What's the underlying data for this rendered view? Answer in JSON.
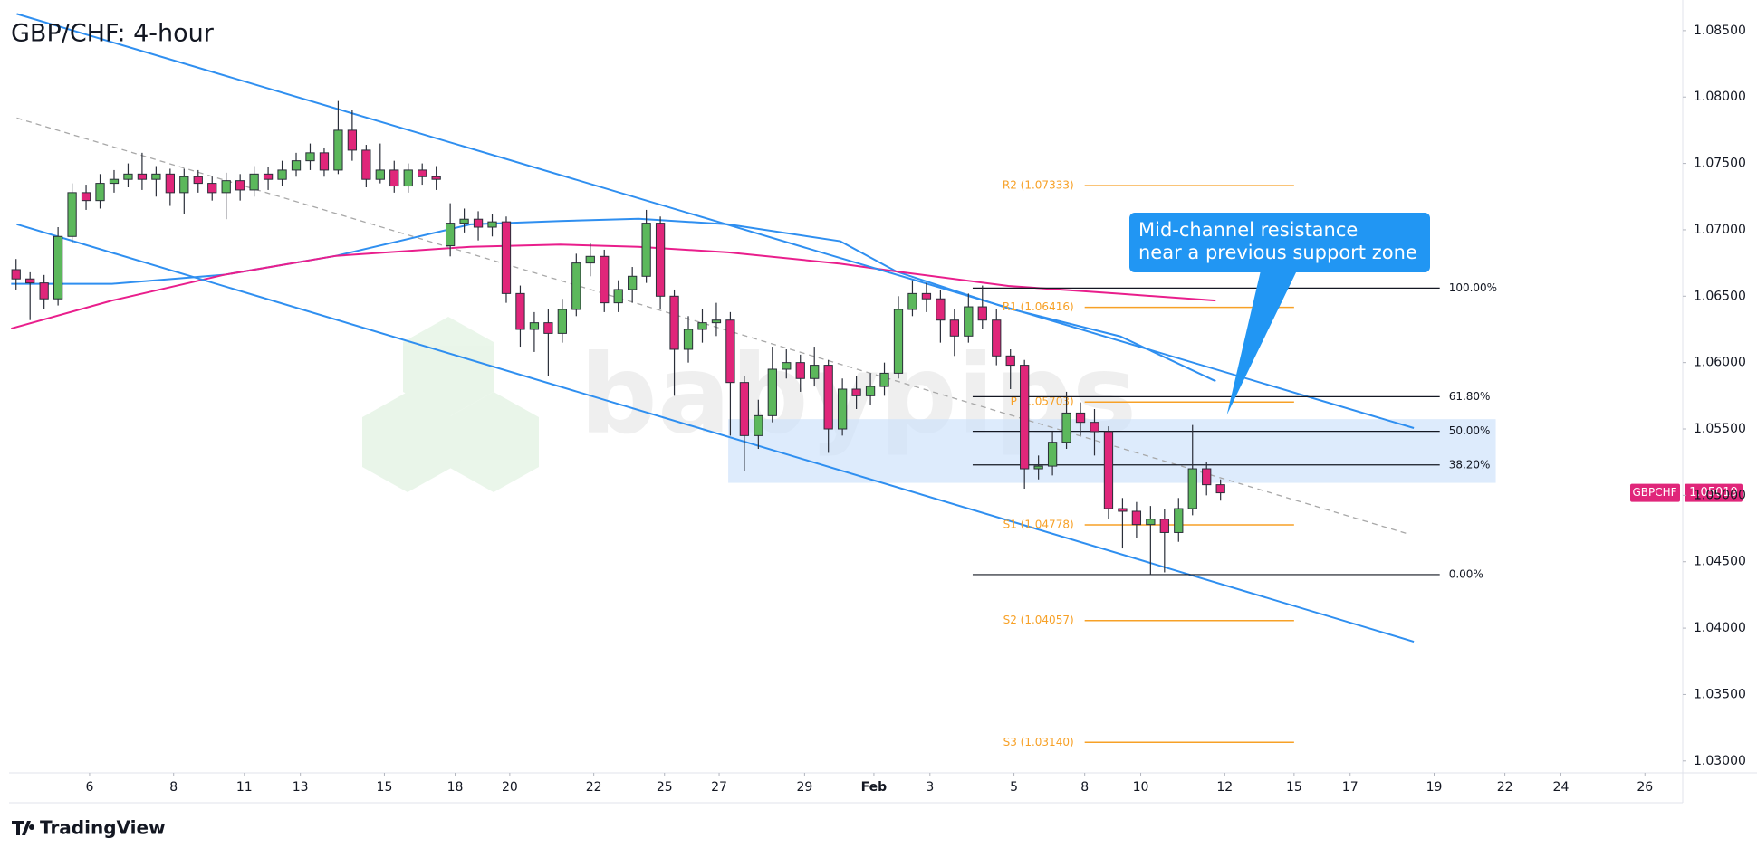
{
  "chart_data": {
    "type": "candlestick",
    "title": "GBP/CHF: 4-hour",
    "symbol": "GBPCHF",
    "last_price": 1.05019,
    "watermark": "babypips",
    "brand": "TradingView",
    "up_color": "#5cb85c",
    "down_color": "#e0267a",
    "xlim": [
      0,
      239
    ],
    "ylim": [
      1.0291,
      1.0869
    ],
    "xticks": [
      {
        "value": 11.5,
        "label": "6"
      },
      {
        "value": 23.5,
        "label": "8"
      },
      {
        "value": 33.6,
        "label": "11"
      },
      {
        "value": 41.6,
        "label": "13"
      },
      {
        "value": 53.6,
        "label": "15"
      },
      {
        "value": 63.7,
        "label": "18"
      },
      {
        "value": 71.5,
        "label": "20"
      },
      {
        "value": 83.5,
        "label": "22"
      },
      {
        "value": 93.6,
        "label": "25"
      },
      {
        "value": 101.4,
        "label": "27"
      },
      {
        "value": 113.6,
        "label": "29"
      },
      {
        "value": 123.5,
        "label": "Feb"
      },
      {
        "value": 131.5,
        "label": "3"
      },
      {
        "value": 143.5,
        "label": "5"
      },
      {
        "value": 153.6,
        "label": "8"
      },
      {
        "value": 161.6,
        "label": "10"
      },
      {
        "value": 173.6,
        "label": "12"
      },
      {
        "value": 183.5,
        "label": "15"
      },
      {
        "value": 191.5,
        "label": "17"
      },
      {
        "value": 203.5,
        "label": "19"
      },
      {
        "value": 213.6,
        "label": "22"
      },
      {
        "value": 221.6,
        "label": "24"
      },
      {
        "value": 233.6,
        "label": "26"
      }
    ],
    "yticks": [
      {
        "value": 1.03,
        "label": "1.03000"
      },
      {
        "value": 1.035,
        "label": "1.03500"
      },
      {
        "value": 1.04,
        "label": "1.04000"
      },
      {
        "value": 1.045,
        "label": "1.04500"
      },
      {
        "value": 1.05,
        "label": "1.05000"
      },
      {
        "value": 1.055,
        "label": "1.05500"
      },
      {
        "value": 1.06,
        "label": "1.06000"
      },
      {
        "value": 1.065,
        "label": "1.06500"
      },
      {
        "value": 1.07,
        "label": "1.07000"
      },
      {
        "value": 1.075,
        "label": "1.07500"
      },
      {
        "value": 1.08,
        "label": "1.08000"
      },
      {
        "value": 1.085,
        "label": "1.08500"
      }
    ],
    "x": [
      1,
      3,
      5,
      7,
      9,
      11,
      13,
      15,
      17,
      19,
      21,
      23,
      25,
      27,
      29,
      31,
      33,
      35,
      37,
      39,
      41,
      43,
      45,
      47,
      49,
      51,
      53,
      55,
      57,
      59,
      61,
      63,
      65,
      67,
      69,
      71,
      73,
      75,
      77,
      79,
      81,
      83,
      85,
      87,
      89,
      91,
      93,
      95,
      97,
      99,
      101,
      103,
      105,
      107,
      109,
      111,
      113,
      115,
      117,
      119,
      121,
      123,
      125,
      127,
      129,
      131,
      133,
      135,
      137,
      139,
      141,
      143,
      145,
      147,
      149,
      151,
      153,
      155,
      157,
      159,
      161,
      163,
      165,
      167,
      169,
      171,
      173
    ],
    "open": [
      1.067,
      1.0663,
      1.066,
      1.0648,
      1.0695,
      1.0728,
      1.0722,
      1.0735,
      1.0738,
      1.0742,
      1.0738,
      1.0742,
      1.0728,
      1.074,
      1.0735,
      1.0728,
      1.0737,
      1.073,
      1.0742,
      1.0738,
      1.0745,
      1.0752,
      1.0758,
      1.0745,
      1.0775,
      1.076,
      1.0738,
      1.0745,
      1.0733,
      1.0745,
      1.074,
      1.0688,
      1.0705,
      1.0708,
      1.0702,
      1.0706,
      1.0652,
      1.0625,
      1.063,
      1.0622,
      1.064,
      1.0675,
      1.068,
      1.0645,
      1.0655,
      1.0665,
      1.0705,
      1.065,
      1.061,
      1.0625,
      1.063,
      1.0632,
      1.0585,
      1.0545,
      1.056,
      1.0595,
      1.06,
      1.0588,
      1.0598,
      1.055,
      1.058,
      1.0575,
      1.0582,
      1.0592,
      1.064,
      1.0652,
      1.0648,
      1.0632,
      1.062,
      1.0642,
      1.0632,
      1.0605,
      1.0598,
      1.052,
      1.0522,
      1.054,
      1.0562,
      1.0555,
      1.0548,
      1.049,
      1.0488,
      1.0478,
      1.0482,
      1.0472,
      1.049,
      1.052,
      1.0508
    ],
    "high": [
      1.0678,
      1.0668,
      1.0666,
      1.0702,
      1.0735,
      1.0734,
      1.0742,
      1.0745,
      1.075,
      1.0758,
      1.0748,
      1.0746,
      1.0746,
      1.0745,
      1.074,
      1.0743,
      1.0742,
      1.0748,
      1.0747,
      1.0752,
      1.0758,
      1.0765,
      1.0762,
      1.0797,
      1.079,
      1.0764,
      1.0765,
      1.0752,
      1.075,
      1.075,
      1.0748,
      1.072,
      1.0716,
      1.0714,
      1.0712,
      1.071,
      1.0658,
      1.0638,
      1.064,
      1.0648,
      1.0682,
      1.069,
      1.0685,
      1.0662,
      1.0672,
      1.0715,
      1.071,
      1.0655,
      1.0635,
      1.064,
      1.0645,
      1.0638,
      1.059,
      1.0572,
      1.0612,
      1.061,
      1.0606,
      1.0612,
      1.0602,
      1.0588,
      1.059,
      1.0592,
      1.06,
      1.065,
      1.0662,
      1.066,
      1.0655,
      1.064,
      1.0652,
      1.0658,
      1.064,
      1.061,
      1.0602,
      1.053,
      1.0548,
      1.0578,
      1.057,
      1.0565,
      1.0552,
      1.0498,
      1.0495,
      1.0492,
      1.049,
      1.0498,
      1.0553,
      1.0525,
      1.0512
    ],
    "low": [
      1.0655,
      1.0632,
      1.064,
      1.0643,
      1.069,
      1.0715,
      1.0716,
      1.0728,
      1.0732,
      1.073,
      1.0725,
      1.0718,
      1.0712,
      1.0728,
      1.0722,
      1.0708,
      1.0722,
      1.0725,
      1.073,
      1.0733,
      1.074,
      1.0745,
      1.074,
      1.0742,
      1.0752,
      1.0732,
      1.0735,
      1.0728,
      1.0728,
      1.0734,
      1.073,
      1.068,
      1.0698,
      1.0692,
      1.0695,
      1.0645,
      1.0612,
      1.0608,
      1.059,
      1.0615,
      1.0635,
      1.0665,
      1.0638,
      1.0638,
      1.0645,
      1.066,
      1.064,
      1.0575,
      1.06,
      1.0615,
      1.062,
      1.0545,
      1.0518,
      1.0535,
      1.0555,
      1.0588,
      1.0578,
      1.0582,
      1.0532,
      1.0545,
      1.0565,
      1.0568,
      1.0575,
      1.0588,
      1.0635,
      1.0638,
      1.0615,
      1.0605,
      1.0615,
      1.0625,
      1.0598,
      1.058,
      1.0505,
      1.0512,
      1.0515,
      1.0535,
      1.0545,
      1.053,
      1.0482,
      1.046,
      1.0468,
      1.044,
      1.0442,
      1.0465,
      1.0485,
      1.05,
      1.0496
    ],
    "close": [
      1.0663,
      1.066,
      1.0648,
      1.0695,
      1.0728,
      1.0722,
      1.0735,
      1.0738,
      1.0742,
      1.0738,
      1.0742,
      1.0728,
      1.074,
      1.0735,
      1.0728,
      1.0737,
      1.073,
      1.0742,
      1.0738,
      1.0745,
      1.0752,
      1.0758,
      1.0745,
      1.0775,
      1.076,
      1.0738,
      1.0745,
      1.0733,
      1.0745,
      1.074,
      1.0738,
      1.0705,
      1.0708,
      1.0702,
      1.0706,
      1.0652,
      1.0625,
      1.063,
      1.0622,
      1.064,
      1.0675,
      1.068,
      1.0645,
      1.0655,
      1.0665,
      1.0705,
      1.065,
      1.061,
      1.0625,
      1.063,
      1.0632,
      1.0585,
      1.0545,
      1.056,
      1.0595,
      1.06,
      1.0588,
      1.0598,
      1.055,
      1.058,
      1.0575,
      1.0582,
      1.0592,
      1.064,
      1.0652,
      1.0648,
      1.0632,
      1.062,
      1.0642,
      1.0632,
      1.0605,
      1.0598,
      1.052,
      1.0522,
      1.054,
      1.0562,
      1.0555,
      1.0548,
      1.049,
      1.0488,
      1.0478,
      1.0482,
      1.0472,
      1.049,
      1.052,
      1.0508,
      1.05019
    ],
    "moving_averages": [
      {
        "color": "#2f8ff0",
        "x": [
          0.3,
          14.7,
          30.7,
          46.7,
          65.9,
          78.7,
          89.9,
          102.7,
          118.7,
          126.7,
          142.7,
          158.7,
          172.3
        ],
        "values": [
          1.06593,
          1.06593,
          1.06661,
          1.06804,
          1.07041,
          1.07066,
          1.07083,
          1.07041,
          1.06914,
          1.06686,
          1.06408,
          1.06197,
          1.0586
        ]
      },
      {
        "color": "#e91e8c",
        "x": [
          0.3,
          14.7,
          30.7,
          46.7,
          65.9,
          78.7,
          89.9,
          102.7,
          118.7,
          126.7,
          142.7,
          158.7,
          172.3
        ],
        "values": [
          1.06256,
          1.06467,
          1.06661,
          1.06804,
          1.06872,
          1.06889,
          1.06872,
          1.0683,
          1.06745,
          1.06686,
          1.06577,
          1.06518,
          1.06467
        ]
      }
    ],
    "trend_lines": [
      {
        "color": "#2f8ff0",
        "dashed": false,
        "x": [
          1.1,
          200.6
        ],
        "values": [
          1.08626,
          1.05507
        ]
      },
      {
        "color": "#2f8ff0",
        "dashed": false,
        "x": [
          1.1,
          200.6
        ],
        "values": [
          1.07042,
          1.03898
        ]
      },
      {
        "color": "#a8a8a8",
        "dashed": true,
        "x": [
          1.1,
          200.0
        ],
        "values": [
          1.07842,
          1.04706
        ]
      }
    ],
    "zone": {
      "color": "#cfe3fb",
      "x": [
        102.7,
        212.3
      ],
      "values": [
        1.05574,
        1.05094
      ]
    },
    "fibonacci": {
      "color": "#131722",
      "x": [
        137.6,
        204.3
      ],
      "levels": [
        {
          "label": "100.00%",
          "price": 1.06561
        },
        {
          "label": "61.80%",
          "price": 1.05743
        },
        {
          "label": "50.00%",
          "price": 1.05482
        },
        {
          "label": "38.20%",
          "price": 1.05229
        },
        {
          "label": "0.00%",
          "price": 1.04403
        }
      ]
    },
    "pivots": {
      "color": "#f7a127",
      "x": [
        153.6,
        183.5
      ],
      "levels": [
        {
          "label": "R2 (1.07333)",
          "price": 1.07333
        },
        {
          "label": "R1 (1.06416)",
          "price": 1.06416
        },
        {
          "label": "P (1.05703)",
          "price": 1.05703
        },
        {
          "label": "S1 (1.04778)",
          "price": 1.04778
        },
        {
          "label": "S2 (1.04057)",
          "price": 1.04057
        },
        {
          "label": "S3 (1.03140)",
          "price": 1.0314
        }
      ]
    },
    "annotation": {
      "lines": [
        "Mid-channel resistance",
        "near a previous support zone"
      ],
      "color": "#2196f3",
      "x": 173.9,
      "price": 1.05606
    }
  }
}
